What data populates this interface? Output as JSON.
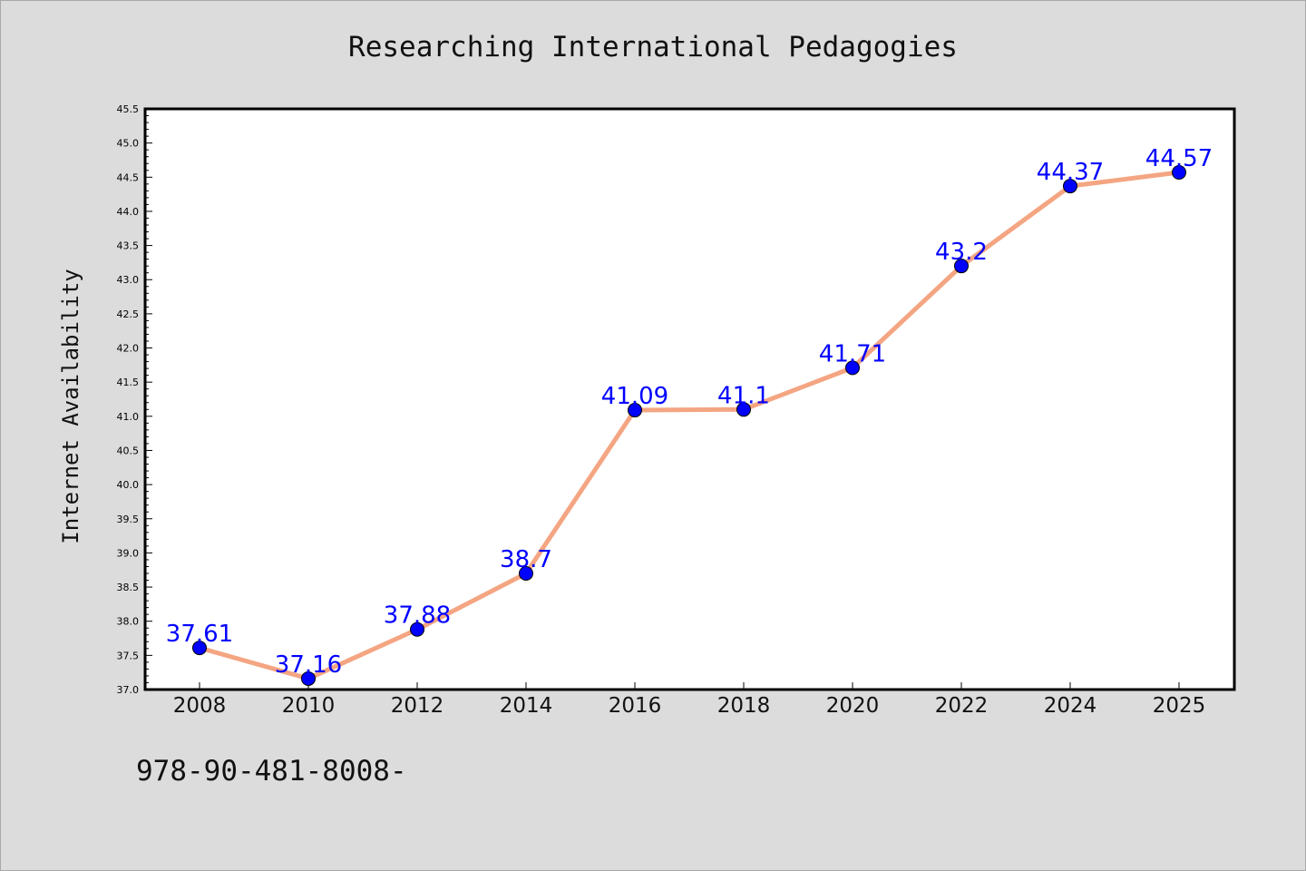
{
  "colors": {
    "background": "#dcdcdc",
    "plot_background": "#ffffff",
    "line": "#f4a582",
    "marker": "#0000ff",
    "data_label": "#0000ff"
  },
  "footnote": "978-90-481-8008-",
  "chart_data": {
    "type": "line",
    "title": "Researching International Pedagogies",
    "xlabel": "",
    "ylabel": "Internet Availability",
    "categories": [
      "2008",
      "2010",
      "2012",
      "2014",
      "2016",
      "2018",
      "2020",
      "2022",
      "2024",
      "2025"
    ],
    "series": [
      {
        "values": [
          37.61,
          37.16,
          37.88,
          38.7,
          41.09,
          41.1,
          41.71,
          43.2,
          44.37,
          44.57
        ],
        "labels": [
          "37.61",
          "37.16",
          "37.88",
          "38.7",
          "41.09",
          "41.1",
          "41.71",
          "43.2",
          "44.37",
          "44.57"
        ]
      }
    ],
    "ylim": [
      37.0,
      45.5
    ],
    "yticks": [
      "37.0",
      "37.5",
      "38.0",
      "38.5",
      "39.0",
      "39.5",
      "40.0",
      "40.5",
      "41.0",
      "41.5",
      "42.0",
      "42.5",
      "43.0",
      "43.5",
      "44.0",
      "44.5",
      "45.0",
      "45.5"
    ],
    "grid": false,
    "legend": "none",
    "markers": true
  }
}
